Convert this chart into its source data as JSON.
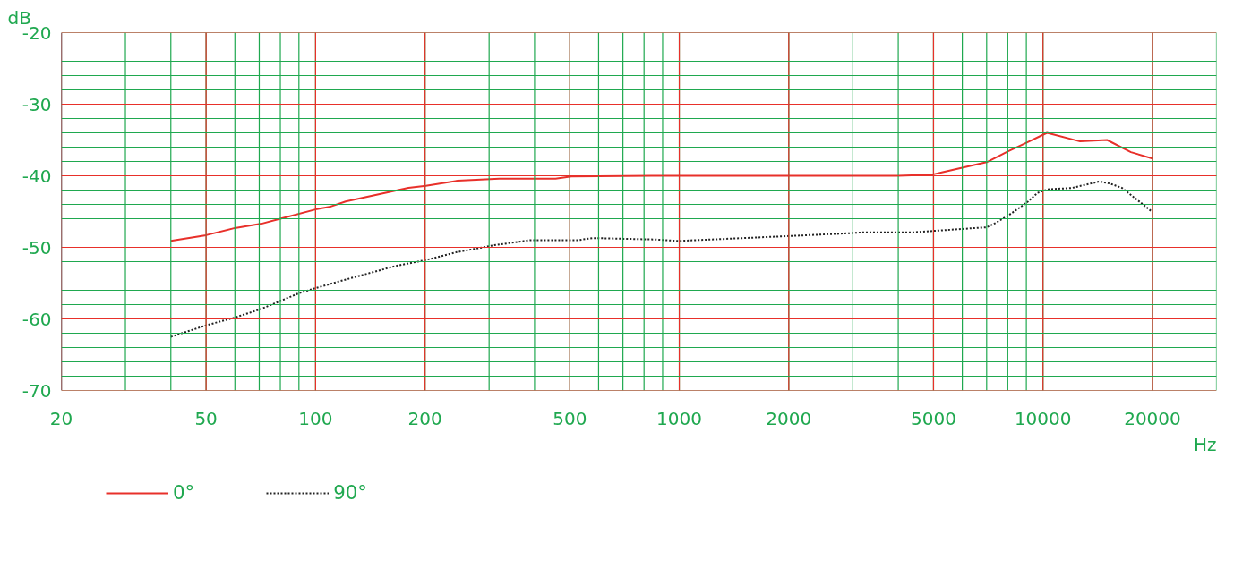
{
  "chart_data": {
    "type": "line",
    "xlabel": "Hz",
    "ylabel": "dB",
    "log": "x",
    "grid": true,
    "legend": "bottom left",
    "xlim": [
      20,
      30000
    ],
    "ylim": [
      -70,
      -20
    ],
    "xticks": [
      20,
      50,
      100,
      200,
      500,
      1000,
      2000,
      5000,
      10000,
      20000
    ],
    "yticks": [
      -20,
      -30,
      -40,
      -50,
      -60,
      -70
    ],
    "series": [
      {
        "name": "0°",
        "color": "#e8302a",
        "line_style": "solid",
        "x": [
          40,
          50,
          60,
          71,
          80,
          100,
          110,
          121,
          152,
          180,
          201,
          246,
          320,
          457,
          505,
          840,
          4000,
          5000,
          5300,
          7000,
          8000,
          9000,
          10260,
          12650,
          15000,
          17450,
          20000
        ],
        "values": [
          -49.1,
          -48.3,
          -47.3,
          -46.7,
          -46.0,
          -44.7,
          -44.3,
          -43.6,
          -42.5,
          -41.7,
          -41.4,
          -40.7,
          -40.4,
          -40.4,
          -40.1,
          -40.0,
          -40.0,
          -39.8,
          -39.5,
          -38.1,
          -36.6,
          -35.4,
          -34.0,
          -35.2,
          -35.0,
          -36.7,
          -37.6
        ]
      },
      {
        "name": "90°",
        "color": "#222222",
        "line_style": "dotted",
        "x": [
          40,
          50,
          60,
          70,
          80,
          90,
          100,
          123,
          143,
          166,
          200,
          243,
          310,
          388,
          526,
          577,
          855,
          995,
          1853,
          2750,
          3240,
          4400,
          6530,
          7000,
          7400,
          8000,
          8600,
          9100,
          9650,
          10300,
          12000,
          14300,
          15300,
          16500,
          18500,
          19800
        ],
        "values": [
          -62.5,
          -60.9,
          -59.8,
          -58.7,
          -57.5,
          -56.4,
          -55.7,
          -54.4,
          -53.5,
          -52.6,
          -51.8,
          -50.7,
          -49.7,
          -49.0,
          -49.0,
          -48.7,
          -48.9,
          -49.1,
          -48.5,
          -48.1,
          -47.9,
          -47.9,
          -47.3,
          -47.2,
          -46.6,
          -45.6,
          -44.5,
          -43.6,
          -42.4,
          -41.9,
          -41.7,
          -40.8,
          -41.1,
          -41.7,
          -43.7,
          -44.9
        ]
      }
    ]
  }
}
